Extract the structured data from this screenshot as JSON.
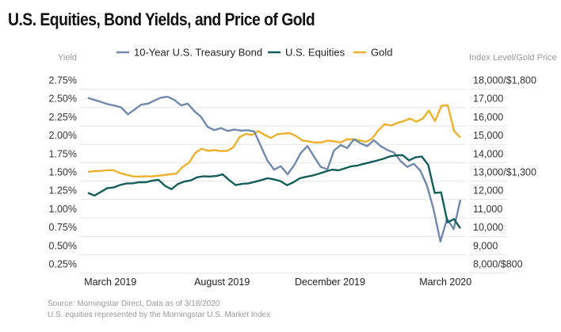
{
  "title": "U.S. Equities, Bond Yields, and Price of Gold",
  "footer": {
    "source": "Source: Morningstar Direct, Data as of 3/18/2020",
    "note": "U.S. equities represented by the Morningstar U.S. Market Index"
  },
  "colors": {
    "bond": "#7189ad",
    "equities": "#125e5b",
    "gold": "#eeb12c",
    "grid": "#e6e6e6"
  },
  "chart_data": {
    "type": "line",
    "title": "U.S. Equities, Bond Yields, and Price of Gold",
    "xlabel": "",
    "ylabel_left": "Yield",
    "ylabel_right": "Index Level/Gold Price",
    "y_left_range": [
      0.25,
      2.75
    ],
    "y_right_range": [
      8000,
      18000
    ],
    "y_left_ticks": [
      "2.75%",
      "2.50%",
      "2.25%",
      "2.00%",
      "1.75%",
      "1.50%",
      "1.25%",
      "1.00%",
      "0.75%",
      "0.50%",
      "0.25%"
    ],
    "y_right_ticks": [
      "18,000/$1,800",
      "17,000",
      "16,000",
      "15,000",
      "14,000",
      "13,000/$1,300",
      "12,000",
      "11,000",
      "10,000",
      "9,000",
      "8,000/$800"
    ],
    "x_ticks": [
      "March 2019",
      "August 2019",
      "December 2019",
      "March 2020"
    ],
    "x_tick_positions": [
      0.06,
      0.36,
      0.65,
      0.96
    ],
    "grid": true,
    "legend": "top",
    "gold_scale_note": "Gold price plotted on right axis at 1/10 of index level",
    "series": [
      {
        "name": "10-Year U.S. Treasury Bond",
        "axis": "left",
        "unit": "%",
        "values": [
          2.52,
          2.49,
          2.46,
          2.43,
          2.41,
          2.38,
          2.29,
          2.34,
          2.41,
          2.42,
          2.46,
          2.5,
          2.51,
          2.47,
          2.41,
          2.43,
          2.33,
          2.25,
          2.12,
          2.08,
          2.1,
          2.06,
          2.07,
          2.05,
          2.06,
          2.04,
          1.84,
          1.65,
          1.52,
          1.58,
          1.47,
          1.6,
          1.77,
          1.86,
          1.72,
          1.58,
          1.54,
          1.78,
          1.86,
          1.82,
          1.94,
          1.88,
          1.84,
          1.92,
          1.86,
          1.8,
          1.77,
          1.66,
          1.57,
          1.62,
          1.52,
          1.31,
          0.97,
          0.54,
          0.86,
          0.72,
          1.12
        ]
      },
      {
        "name": "U.S. Equities",
        "axis": "right",
        "unit": "index",
        "values": [
          11900,
          11720,
          11880,
          12080,
          12150,
          12280,
          12360,
          12380,
          12430,
          12420,
          12560,
          12600,
          12270,
          12080,
          12360,
          12510,
          12560,
          12680,
          12750,
          12700,
          12760,
          12820,
          12550,
          12240,
          12380,
          12420,
          12510,
          12600,
          12680,
          12620,
          12540,
          12300,
          12430,
          12620,
          12690,
          12790,
          12860,
          12980,
          13090,
          13130,
          13220,
          13320,
          13400,
          13470,
          13560,
          13660,
          13720,
          13800,
          13890,
          13880,
          13600,
          13760,
          13810,
          13340,
          11890,
          11920,
          10280,
          10480,
          9960
        ]
      },
      {
        "name": "Gold",
        "axis": "right",
        "unit": "USD/oz",
        "values": [
          1300,
          1302,
          1304,
          1306,
          1308,
          1294,
          1284,
          1282,
          1279,
          1278,
          1280,
          1283,
          1286,
          1289,
          1293,
          1325,
          1346,
          1403,
          1425,
          1412,
          1417,
          1412,
          1419,
          1437,
          1492,
          1510,
          1502,
          1523,
          1506,
          1482,
          1502,
          1504,
          1510,
          1491,
          1466,
          1463,
          1458,
          1463,
          1473,
          1468,
          1462,
          1478,
          1479,
          1472,
          1459,
          1476,
          1525,
          1558,
          1550,
          1563,
          1573,
          1586,
          1577,
          1590,
          1634,
          1580,
          1660,
          1665,
          1526,
          1484
        ]
      }
    ]
  }
}
